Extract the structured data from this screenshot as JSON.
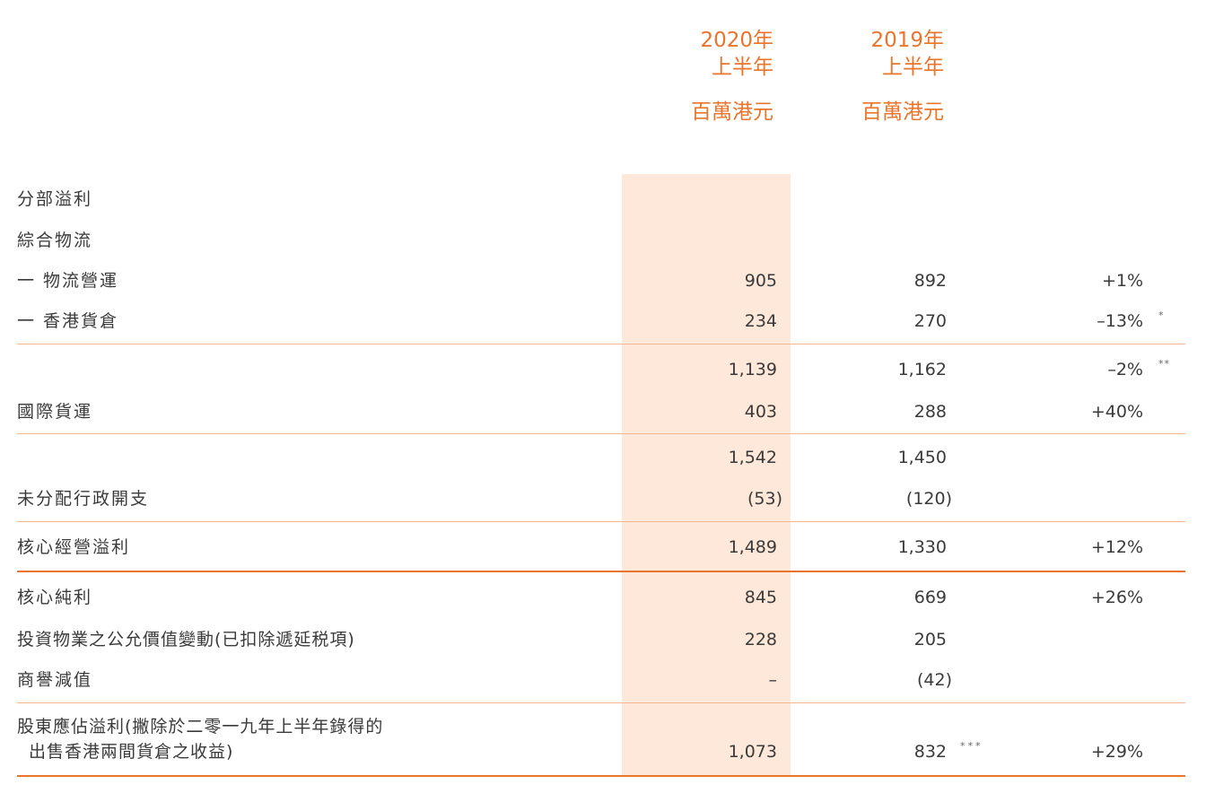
{
  "header": {
    "col_2020": {
      "year": "2020年",
      "half": "上半年",
      "unit": "百萬港元"
    },
    "col_2019": {
      "year": "2019年",
      "half": "上半年",
      "unit": "百萬港元"
    }
  },
  "rows": [
    {
      "label": "分部溢利",
      "v2020": "",
      "v2019": "",
      "change": "",
      "note": ""
    },
    {
      "label": "綜合物流",
      "v2020": "",
      "v2019": "",
      "change": "",
      "note": ""
    },
    {
      "label": "一 物流營運",
      "v2020": "905",
      "v2019": "892",
      "change": "+1%",
      "note": ""
    },
    {
      "label": "一 香港貨倉",
      "v2020": "234",
      "v2019": "270",
      "change": "–13%",
      "note": "*"
    },
    {
      "label": "",
      "v2020": "1,139",
      "v2019": "1,162",
      "change": "–2%",
      "note": "**"
    },
    {
      "label": "國際貨運",
      "v2020": "403",
      "v2019": "288",
      "change": "+40%",
      "note": ""
    },
    {
      "label": "",
      "v2020": "1,542",
      "v2019": "1,450",
      "change": "",
      "note": ""
    },
    {
      "label": "未分配行政開支",
      "v2020": "(53)",
      "v2019": "(120)",
      "change": "",
      "note": ""
    },
    {
      "label": "核心經營溢利",
      "v2020": "1,489",
      "v2019": "1,330",
      "change": "+12%",
      "note": ""
    },
    {
      "label": "核心純利",
      "v2020": "845",
      "v2019": "669",
      "change": "+26%",
      "note": ""
    },
    {
      "label": "投資物業之公允價值變動(已扣除遞延税項)",
      "v2020": "228",
      "v2019": "205",
      "change": "",
      "note": ""
    },
    {
      "label": "商譽減值",
      "v2020": "–",
      "v2019": "(42)",
      "change": "",
      "note": ""
    },
    {
      "label_line1": "股東應佔溢利(撇除於二零一九年上半年錄得的",
      "label_line2": "出售香港兩間貨倉之收益)",
      "v2020": "1,073",
      "v2019": "832",
      "v2019_note": "***",
      "change": "+29%"
    }
  ],
  "colors": {
    "accent": "#e8752b",
    "highlight": "#fde8d9",
    "rule": "#f2b78e",
    "text": "#3a3a3a"
  }
}
